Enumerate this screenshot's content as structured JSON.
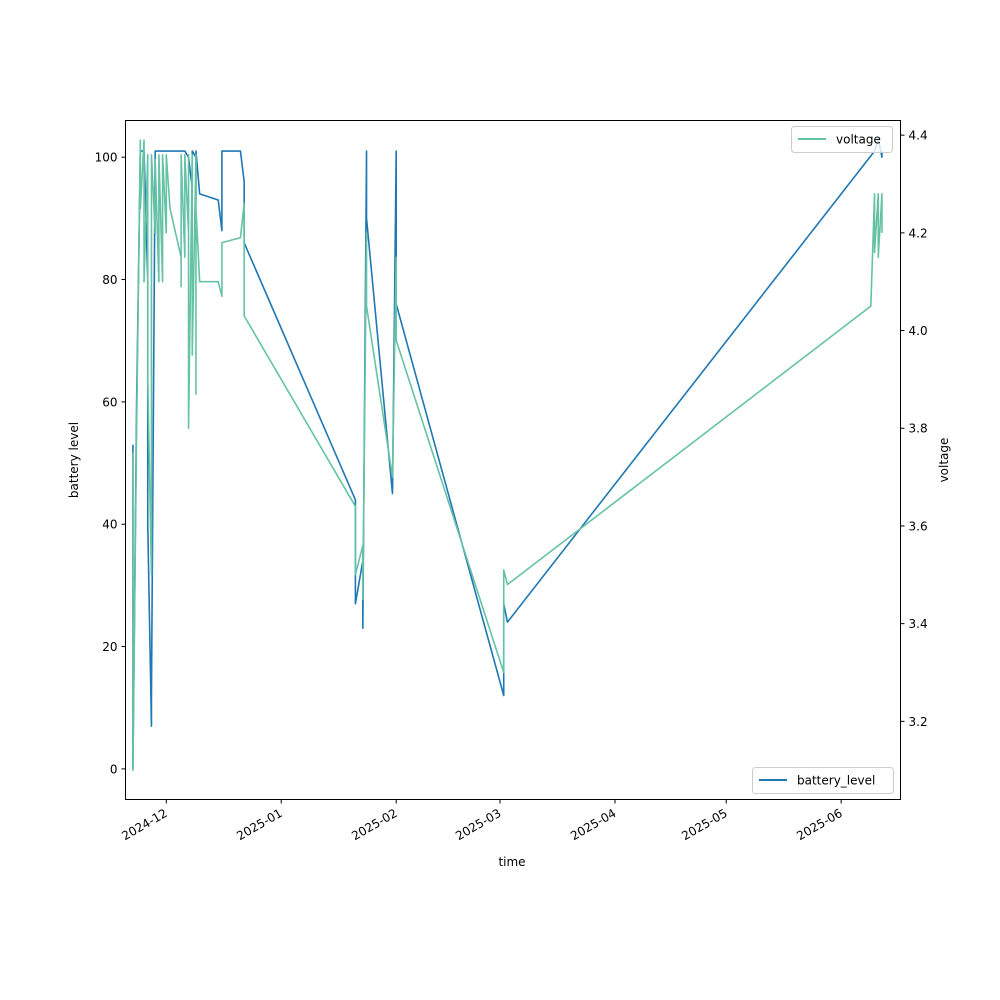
{
  "chart_data": {
    "type": "line",
    "xlabel": "time",
    "ylabel_left": "battery level",
    "ylabel_right": "voltage",
    "x_ticks": [
      "2024-12",
      "2025-01",
      "2025-02",
      "2025-03",
      "2025-04",
      "2025-05",
      "2025-06"
    ],
    "y_left_ticks": [
      0,
      20,
      40,
      60,
      80,
      100
    ],
    "y_right_ticks": [
      "3.2",
      "3.4",
      "3.6",
      "3.8",
      "4.0",
      "4.2",
      "4.4"
    ],
    "x_range": [
      "2024-11-20",
      "2025-06-17"
    ],
    "y_left_range": [
      -5,
      106
    ],
    "y_right_range": [
      3.04,
      4.43
    ],
    "legend_positions": {
      "voltage": "upper right",
      "battery_level": "lower right"
    },
    "grid": false,
    "series": [
      {
        "name": "battery_level",
        "axis": "left",
        "color": "#1f77b4",
        "points": [
          [
            "2024-11-22",
            53
          ],
          [
            "2024-11-22",
            0
          ],
          [
            "2024-11-23",
            60
          ],
          [
            "2024-11-24",
            101
          ],
          [
            "2024-11-25",
            101
          ],
          [
            "2024-11-26",
            80
          ],
          [
            "2024-11-26",
            40
          ],
          [
            "2024-11-27",
            7
          ],
          [
            "2024-11-27",
            12
          ],
          [
            "2024-11-28",
            101
          ],
          [
            "2024-12-02",
            101
          ],
          [
            "2024-12-06",
            101
          ],
          [
            "2024-12-07",
            100
          ],
          [
            "2024-12-08",
            95
          ],
          [
            "2024-12-08",
            101
          ],
          [
            "2024-12-09",
            100
          ],
          [
            "2024-12-09",
            93
          ],
          [
            "2024-12-09",
            101
          ],
          [
            "2024-12-10",
            94
          ],
          [
            "2024-12-15",
            93
          ],
          [
            "2024-12-16",
            88
          ],
          [
            "2024-12-16",
            101
          ],
          [
            "2024-12-21",
            101
          ],
          [
            "2024-12-22",
            96
          ],
          [
            "2024-12-22",
            86
          ],
          [
            "2025-01-21",
            44
          ],
          [
            "2025-01-21",
            27
          ],
          [
            "2025-01-23",
            34
          ],
          [
            "2025-01-23",
            23
          ],
          [
            "2025-01-24",
            101
          ],
          [
            "2025-01-24",
            90
          ],
          [
            "2025-01-31",
            45
          ],
          [
            "2025-02-01",
            101
          ],
          [
            "2025-02-01",
            76
          ],
          [
            "2025-03-02",
            12
          ],
          [
            "2025-03-02",
            27
          ],
          [
            "2025-03-03",
            24
          ],
          [
            "2025-06-10",
            101
          ],
          [
            "2025-06-11",
            103
          ],
          [
            "2025-06-12",
            100
          ],
          [
            "2025-06-12",
            101
          ]
        ]
      },
      {
        "name": "voltage",
        "axis": "right",
        "color": "#66c2a5",
        "points": [
          [
            "2024-11-22",
            3.75
          ],
          [
            "2024-11-22",
            3.1
          ],
          [
            "2024-11-23",
            3.8
          ],
          [
            "2024-11-24",
            4.39
          ],
          [
            "2024-11-24",
            4.25
          ],
          [
            "2024-11-25",
            4.39
          ],
          [
            "2024-11-25",
            4.1
          ],
          [
            "2024-11-26",
            4.36
          ],
          [
            "2024-11-26",
            3.9
          ],
          [
            "2024-11-27",
            3.5
          ],
          [
            "2024-11-27",
            4.36
          ],
          [
            "2024-11-28",
            4.2
          ],
          [
            "2024-11-28",
            4.35
          ],
          [
            "2024-11-29",
            4.1
          ],
          [
            "2024-11-29",
            4.36
          ],
          [
            "2024-11-30",
            4.1
          ],
          [
            "2024-11-30",
            4.36
          ],
          [
            "2024-12-01",
            4.2
          ],
          [
            "2024-12-01",
            4.36
          ],
          [
            "2024-12-02",
            4.25
          ],
          [
            "2024-12-05",
            4.15
          ],
          [
            "2024-12-05",
            4.09
          ],
          [
            "2024-12-05",
            4.36
          ],
          [
            "2024-12-06",
            4.15
          ],
          [
            "2024-12-06",
            4.36
          ],
          [
            "2024-12-07",
            4.2
          ],
          [
            "2024-12-07",
            3.9
          ],
          [
            "2024-12-07",
            4.36
          ],
          [
            "2024-12-07",
            3.8
          ],
          [
            "2024-12-08",
            4.36
          ],
          [
            "2024-12-08",
            3.95
          ],
          [
            "2024-12-09",
            4.36
          ],
          [
            "2024-12-09",
            3.87
          ],
          [
            "2024-12-09",
            4.25
          ],
          [
            "2024-12-10",
            4.1
          ],
          [
            "2024-12-15",
            4.1
          ],
          [
            "2024-12-16",
            4.07
          ],
          [
            "2024-12-16",
            4.18
          ],
          [
            "2024-12-21",
            4.19
          ],
          [
            "2024-12-22",
            4.26
          ],
          [
            "2024-12-22",
            4.03
          ],
          [
            "2025-01-21",
            3.64
          ],
          [
            "2025-01-21",
            3.5
          ],
          [
            "2025-01-23",
            3.56
          ],
          [
            "2025-01-23",
            3.45
          ],
          [
            "2025-01-24",
            4.2
          ],
          [
            "2025-01-24",
            4.05
          ],
          [
            "2025-01-31",
            3.7
          ],
          [
            "2025-02-01",
            4.15
          ],
          [
            "2025-02-01",
            3.98
          ],
          [
            "2025-03-02",
            3.3
          ],
          [
            "2025-03-02",
            3.51
          ],
          [
            "2025-03-03",
            3.48
          ],
          [
            "2025-06-09",
            4.05
          ],
          [
            "2025-06-10",
            4.28
          ],
          [
            "2025-06-10",
            4.16
          ],
          [
            "2025-06-11",
            4.28
          ],
          [
            "2025-06-11",
            4.15
          ],
          [
            "2025-06-12",
            4.28
          ],
          [
            "2025-06-12",
            4.2
          ]
        ]
      }
    ]
  }
}
